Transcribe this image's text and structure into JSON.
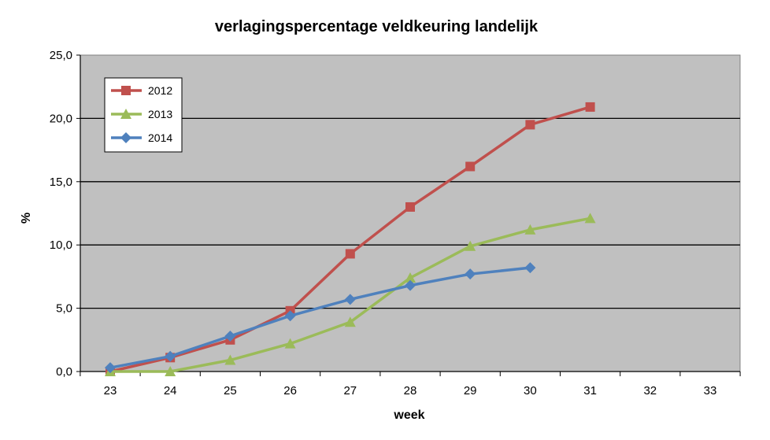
{
  "chart_data": {
    "type": "line",
    "title": "verlagingspercentage veldkeuring landelijk",
    "xlabel": "week",
    "ylabel": "%",
    "x": [
      23,
      24,
      25,
      26,
      27,
      28,
      29,
      30,
      31,
      32,
      33
    ],
    "x_tick_labels": [
      "23",
      "24",
      "25",
      "26",
      "27",
      "28",
      "29",
      "30",
      "31",
      "32",
      "33"
    ],
    "ylim": [
      0,
      25
    ],
    "y_ticks": [
      0,
      5,
      10,
      15,
      20,
      25
    ],
    "y_tick_labels": [
      "0,0",
      "5,0",
      "10,0",
      "15,0",
      "20,0",
      "25,0"
    ],
    "grid": true,
    "legend_position": "top-left",
    "background": "#c0c0c0",
    "series": [
      {
        "name": "2012",
        "color": "#c0504d",
        "marker": "square",
        "x": [
          23,
          24,
          25,
          26,
          27,
          28,
          29,
          30,
          31
        ],
        "values": [
          0.0,
          1.1,
          2.5,
          4.8,
          9.3,
          13.0,
          16.2,
          19.5,
          20.9
        ]
      },
      {
        "name": "2013",
        "color": "#9bbb59",
        "marker": "triangle",
        "x": [
          23,
          24,
          25,
          26,
          27,
          28,
          29,
          30,
          31
        ],
        "values": [
          0.0,
          0.0,
          0.9,
          2.2,
          3.9,
          7.4,
          9.9,
          11.2,
          12.1
        ]
      },
      {
        "name": "2014",
        "color": "#4f81bd",
        "marker": "diamond",
        "x": [
          23,
          24,
          25,
          26,
          27,
          28,
          29,
          30
        ],
        "values": [
          0.3,
          1.2,
          2.8,
          4.4,
          5.7,
          6.8,
          7.7,
          8.2
        ]
      }
    ]
  }
}
